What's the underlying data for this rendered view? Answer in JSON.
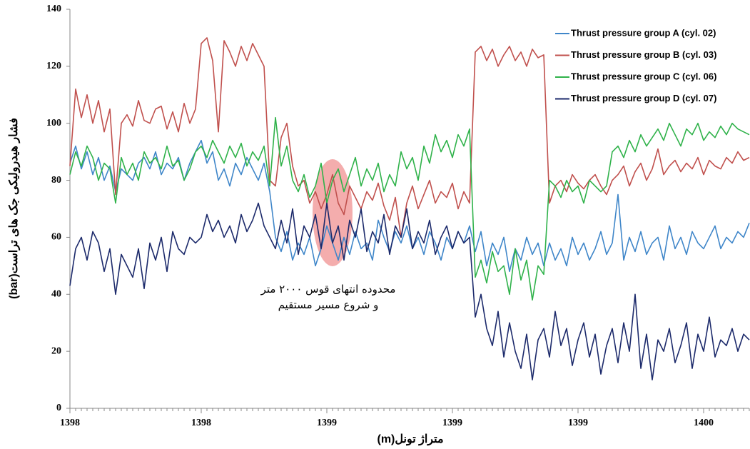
{
  "chart_data": {
    "type": "line",
    "y_label": "فشار هیدرولیکی جک های تراست(bar)",
    "x_label": "متراژ تونل(m)",
    "annotation": [
      "محدوده انتهای قوس ۲۰۰۰ متر",
      "و شروع مسیر مستقیم"
    ],
    "ylim": [
      0,
      140
    ],
    "yticks": [
      0,
      20,
      40,
      60,
      80,
      100,
      120,
      140
    ],
    "legend": "top-right",
    "categories": [
      "1398",
      null,
      null,
      null,
      null,
      null,
      null,
      null,
      null,
      null,
      null,
      null,
      null,
      null,
      null,
      null,
      null,
      null,
      null,
      null,
      null,
      null,
      null,
      "1398",
      null,
      null,
      null,
      null,
      null,
      null,
      null,
      null,
      null,
      null,
      null,
      null,
      null,
      null,
      null,
      null,
      null,
      null,
      null,
      null,
      null,
      "1399",
      null,
      null,
      null,
      null,
      null,
      null,
      null,
      null,
      null,
      null,
      null,
      null,
      null,
      null,
      null,
      null,
      null,
      null,
      null,
      null,
      null,
      "1399",
      null,
      null,
      null,
      null,
      null,
      null,
      null,
      null,
      null,
      null,
      null,
      null,
      null,
      null,
      null,
      null,
      null,
      null,
      null,
      null,
      null,
      "1399",
      null,
      null,
      null,
      null,
      null,
      null,
      null,
      null,
      null,
      null,
      null,
      null,
      null,
      null,
      null,
      null,
      null,
      null,
      null,
      null,
      null,
      "1400",
      null,
      null,
      null,
      null,
      null,
      null,
      null,
      null
    ],
    "series": [
      {
        "name": "Thrust pressure group A (cyl. 02)",
        "color": "#3f86c9",
        "values": [
          86,
          92,
          84,
          90,
          82,
          88,
          80,
          85,
          76,
          84,
          82,
          80,
          86,
          88,
          84,
          90,
          82,
          86,
          84,
          88,
          80,
          86,
          90,
          94,
          86,
          90,
          80,
          84,
          78,
          86,
          82,
          88,
          84,
          80,
          86,
          76,
          60,
          55,
          62,
          52,
          58,
          54,
          60,
          50,
          56,
          64,
          58,
          52,
          60,
          54,
          62,
          56,
          58,
          52,
          66,
          60,
          55,
          62,
          58,
          64,
          56,
          60,
          54,
          62,
          58,
          52,
          60,
          56,
          62,
          58,
          64,
          55,
          62,
          50,
          58,
          54,
          60,
          48,
          56,
          52,
          60,
          54,
          58,
          50,
          58,
          52,
          56,
          50,
          60,
          54,
          58,
          52,
          56,
          62,
          54,
          58,
          75,
          52,
          60,
          55,
          62,
          54,
          58,
          60,
          52,
          64,
          56,
          60,
          54,
          62,
          58,
          56,
          60,
          64,
          56,
          60,
          58,
          62,
          60,
          65
        ]
      },
      {
        "name": "Thrust pressure group B (cyl. 03)",
        "color": "#c0504d",
        "values": [
          85,
          112,
          102,
          110,
          100,
          108,
          97,
          105,
          75,
          100,
          103,
          99,
          108,
          101,
          100,
          105,
          106,
          98,
          104,
          97,
          107,
          100,
          105,
          128,
          130,
          122,
          97,
          129,
          125,
          120,
          127,
          122,
          128,
          124,
          120,
          80,
          78,
          95,
          100,
          85,
          78,
          80,
          72,
          76,
          70,
          75,
          82,
          72,
          68,
          78,
          74,
          70,
          76,
          73,
          79,
          71,
          66,
          74,
          60,
          72,
          78,
          70,
          75,
          80,
          72,
          76,
          74,
          79,
          70,
          76,
          72,
          125,
          127,
          122,
          126,
          120,
          124,
          127,
          122,
          125,
          120,
          126,
          123,
          124,
          72,
          78,
          80,
          76,
          82,
          79,
          77,
          80,
          82,
          78,
          75,
          80,
          82,
          85,
          78,
          83,
          86,
          80,
          84,
          91,
          82,
          85,
          87,
          83,
          86,
          84,
          88,
          82,
          87,
          85,
          84,
          88,
          86,
          90,
          87,
          88
        ]
      },
      {
        "name": "Thrust pressure group C (cyl. 06)",
        "color": "#2fb24a",
        "values": [
          82,
          90,
          85,
          92,
          88,
          80,
          86,
          84,
          72,
          88,
          82,
          86,
          80,
          90,
          86,
          88,
          84,
          92,
          85,
          87,
          80,
          84,
          90,
          92,
          88,
          94,
          90,
          86,
          92,
          88,
          93,
          85,
          90,
          87,
          92,
          78,
          102,
          85,
          92,
          80,
          76,
          82,
          74,
          78,
          86,
          72,
          80,
          84,
          76,
          82,
          88,
          78,
          84,
          80,
          86,
          76,
          82,
          78,
          90,
          84,
          88,
          80,
          92,
          86,
          96,
          90,
          94,
          88,
          96,
          92,
          98,
          46,
          52,
          44,
          55,
          48,
          50,
          40,
          56,
          45,
          52,
          38,
          50,
          47,
          80,
          78,
          74,
          80,
          76,
          78,
          72,
          80,
          78,
          76,
          78,
          90,
          92,
          88,
          94,
          90,
          96,
          92,
          95,
          98,
          94,
          100,
          96,
          92,
          98,
          96,
          100,
          94,
          97,
          95,
          99,
          96,
          100,
          98,
          97,
          96
        ]
      },
      {
        "name": "Thrust pressure group D (cyl. 07)",
        "color": "#1c2a6b",
        "values": [
          43,
          56,
          60,
          52,
          62,
          58,
          48,
          56,
          40,
          54,
          50,
          46,
          56,
          42,
          58,
          52,
          60,
          48,
          62,
          56,
          54,
          60,
          58,
          60,
          68,
          62,
          66,
          60,
          64,
          58,
          68,
          62,
          66,
          72,
          64,
          60,
          56,
          66,
          58,
          70,
          54,
          64,
          60,
          68,
          56,
          72,
          58,
          64,
          52,
          66,
          60,
          70,
          55,
          62,
          58,
          68,
          54,
          64,
          60,
          70,
          56,
          62,
          58,
          66,
          54,
          60,
          64,
          56,
          62,
          58,
          60,
          32,
          40,
          28,
          22,
          34,
          18,
          30,
          20,
          14,
          26,
          10,
          24,
          28,
          18,
          34,
          22,
          28,
          15,
          24,
          30,
          18,
          26,
          12,
          22,
          28,
          16,
          30,
          20,
          40,
          14,
          26,
          10,
          24,
          20,
          28,
          16,
          22,
          30,
          14,
          26,
          20,
          32,
          18,
          24,
          22,
          28,
          20,
          26,
          24
        ]
      }
    ]
  }
}
